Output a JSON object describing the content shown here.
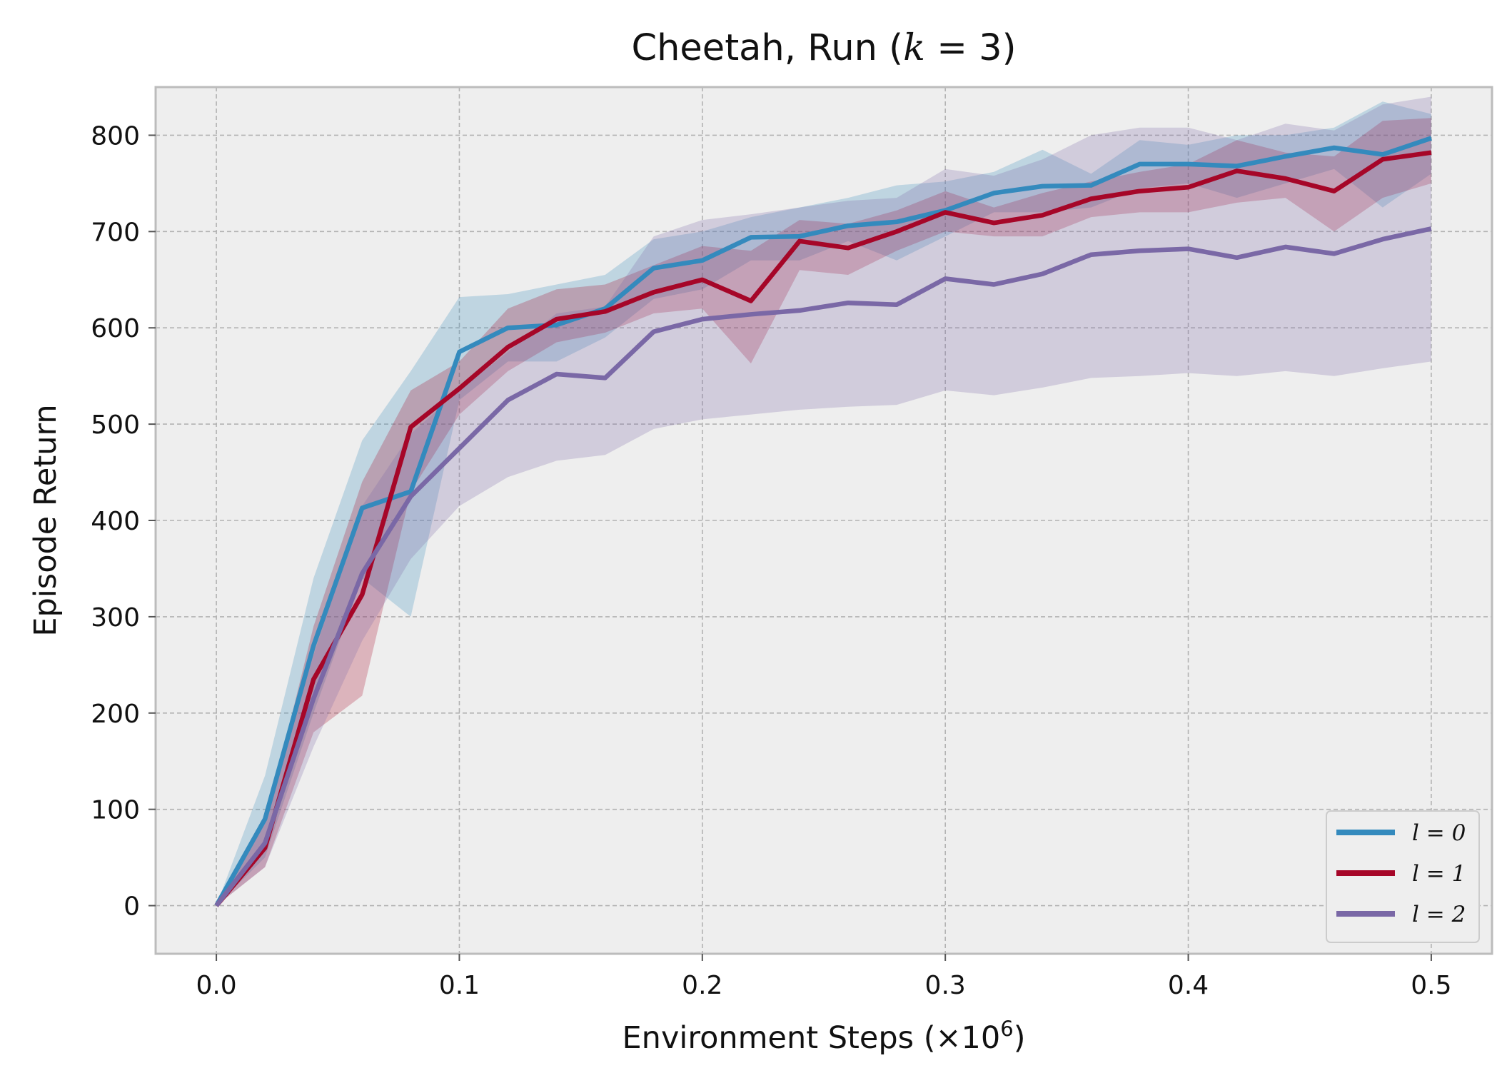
{
  "chart_data": {
    "type": "line",
    "title": "Cheetah, Run (k = 3)",
    "xlabel": "Environment Steps (×10^6)",
    "ylabel": "Episode Return",
    "xlim": [
      -0.025,
      0.525
    ],
    "ylim": [
      -50,
      850
    ],
    "x_ticks": [
      0.0,
      0.1,
      0.2,
      0.3,
      0.4,
      0.5
    ],
    "x_tick_labels": [
      "0.0",
      "0.1",
      "0.2",
      "0.3",
      "0.4",
      "0.5"
    ],
    "y_ticks": [
      0,
      100,
      200,
      300,
      400,
      500,
      600,
      700,
      800
    ],
    "y_tick_labels": [
      "0",
      "100",
      "200",
      "300",
      "400",
      "500",
      "600",
      "700",
      "800"
    ],
    "grid": true,
    "legend_position": "bottom-right",
    "x": [
      0.0,
      0.02,
      0.04,
      0.06,
      0.08,
      0.1,
      0.12,
      0.14,
      0.16,
      0.18,
      0.2,
      0.22,
      0.24,
      0.26,
      0.28,
      0.3,
      0.32,
      0.34,
      0.36,
      0.38,
      0.4,
      0.42,
      0.44,
      0.46,
      0.48,
      0.5
    ],
    "series": [
      {
        "name": "l = 0",
        "color": "#348ABD",
        "values": [
          0,
          90,
          270,
          413,
          430,
          575,
          600,
          603,
          620,
          662,
          670,
          694,
          695,
          706,
          710,
          722,
          740,
          747,
          748,
          770,
          770,
          768,
          778,
          787,
          780,
          797
        ],
        "lower": [
          0,
          50,
          200,
          340,
          300,
          525,
          565,
          565,
          590,
          630,
          640,
          670,
          670,
          690,
          670,
          695,
          720,
          720,
          725,
          745,
          750,
          735,
          750,
          765,
          725,
          760
        ],
        "upper": [
          0,
          135,
          340,
          483,
          555,
          632,
          635,
          645,
          655,
          692,
          700,
          715,
          725,
          735,
          748,
          752,
          762,
          785,
          760,
          795,
          790,
          800,
          800,
          808,
          835,
          822
        ]
      },
      {
        "name": "l = 1",
        "color": "#A60628",
        "values": [
          0,
          60,
          235,
          323,
          497,
          537,
          580,
          609,
          617,
          637,
          650,
          628,
          690,
          683,
          700,
          720,
          709,
          717,
          734,
          742,
          746,
          763,
          755,
          742,
          775,
          782
        ],
        "lower": [
          0,
          40,
          180,
          218,
          430,
          510,
          555,
          585,
          595,
          615,
          620,
          563,
          660,
          655,
          680,
          700,
          695,
          695,
          715,
          720,
          720,
          730,
          735,
          700,
          735,
          750
        ],
        "upper": [
          0,
          85,
          290,
          440,
          535,
          565,
          620,
          640,
          645,
          665,
          685,
          680,
          712,
          708,
          722,
          742,
          725,
          740,
          752,
          762,
          770,
          795,
          782,
          778,
          815,
          818
        ]
      },
      {
        "name": "l = 2",
        "color": "#7A68A6",
        "values": [
          0,
          65,
          215,
          345,
          425,
          475,
          525,
          552,
          548,
          596,
          609,
          614,
          618,
          626,
          624,
          651,
          645,
          656,
          676,
          680,
          682,
          673,
          684,
          677,
          692,
          703
        ],
        "lower": [
          0,
          40,
          165,
          275,
          360,
          415,
          445,
          462,
          468,
          495,
          505,
          510,
          515,
          518,
          520,
          535,
          530,
          538,
          548,
          550,
          553,
          550,
          555,
          550,
          558,
          565
        ],
        "upper": [
          0,
          88,
          260,
          415,
          490,
          535,
          575,
          615,
          622,
          695,
          712,
          718,
          725,
          732,
          735,
          765,
          758,
          775,
          800,
          808,
          808,
          795,
          812,
          805,
          832,
          840
        ]
      }
    ]
  }
}
